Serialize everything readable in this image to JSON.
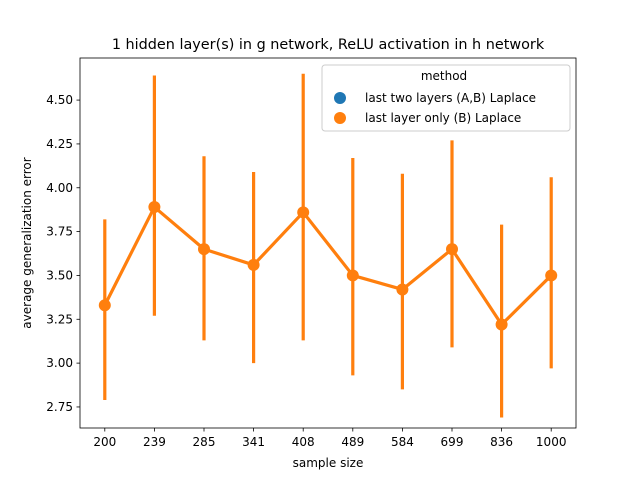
{
  "chart_data": {
    "type": "line",
    "title": "1 hidden layer(s) in g network, ReLU activation in h network",
    "xlabel": "sample size",
    "ylabel": "average generalization error",
    "categories": [
      "200",
      "239",
      "285",
      "341",
      "408",
      "489",
      "584",
      "699",
      "836",
      "1000"
    ],
    "yticks": [
      "2.75",
      "3.00",
      "3.25",
      "3.50",
      "3.75",
      "4.00",
      "4.25",
      "4.50"
    ],
    "ylim": [
      2.63,
      4.74
    ],
    "grid": false,
    "legend": {
      "title": "method",
      "placement": "top-right",
      "entries": [
        {
          "label": "last two layers (A,B) Laplace",
          "color": "#1f77b4"
        },
        {
          "label": "last layer only (B) Laplace",
          "color": "#ff7f0e"
        }
      ]
    },
    "series": [
      {
        "name": "last layer only (B) Laplace",
        "color": "#ff7f0e",
        "values": [
          3.33,
          3.89,
          3.65,
          3.56,
          3.86,
          3.5,
          3.42,
          3.65,
          3.22,
          3.5
        ],
        "ci_low": [
          2.79,
          3.27,
          3.13,
          3.0,
          3.13,
          2.93,
          2.85,
          3.09,
          2.69,
          2.97
        ],
        "ci_high": [
          3.82,
          4.64,
          4.18,
          4.09,
          4.65,
          4.17,
          4.08,
          4.27,
          3.79,
          4.06
        ]
      }
    ]
  }
}
